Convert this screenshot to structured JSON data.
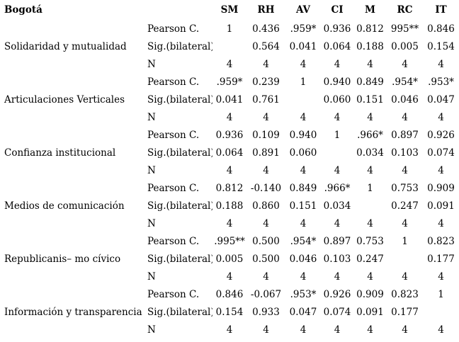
{
  "table": {
    "corner_label": "Bogotá",
    "columns": [
      "SM",
      "RH",
      "AV",
      "CI",
      "M",
      "RC",
      "IT"
    ],
    "row_labels": {
      "pearson": "Pearson C.",
      "sig": "Sig.(bilateral)",
      "n": "N"
    },
    "blocks": [
      {
        "variable": "Solidaridad y mutualidad",
        "pearson": [
          "1",
          "0.436",
          ".959*",
          "0.936",
          "0.812",
          "995**",
          "0.846"
        ],
        "sig": [
          "",
          "0.564",
          "0.041",
          "0.064",
          "0.188",
          "0.005",
          "0.154"
        ],
        "n": [
          "4",
          "4",
          "4",
          "4",
          "4",
          "4",
          "4"
        ]
      },
      {
        "variable": "Articulaciones Verticales",
        "pearson": [
          ".959*",
          "0.239",
          "1",
          "0.940",
          "0.849",
          ".954*",
          ".953*"
        ],
        "sig": [
          "0.041",
          "0.761",
          "",
          "0.060",
          "0.151",
          "0.046",
          "0.047"
        ],
        "n": [
          "4",
          "4",
          "4",
          "4",
          "4",
          "4",
          "4"
        ]
      },
      {
        "variable": "Confianza institucional",
        "pearson": [
          "0.936",
          "0.109",
          "0.940",
          "1",
          ".966*",
          "0.897",
          "0.926"
        ],
        "sig": [
          "0.064",
          "0.891",
          "0.060",
          "",
          "0.034",
          "0.103",
          "0.074"
        ],
        "n": [
          "4",
          "4",
          "4",
          "4",
          "4",
          "4",
          "4"
        ]
      },
      {
        "variable": "Medios de comunicación",
        "pearson": [
          "0.812",
          "-0.140",
          "0.849",
          ".966*",
          "1",
          "0.753",
          "0.909"
        ],
        "sig": [
          "0.188",
          "0.860",
          "0.151",
          "0.034",
          "",
          "0.247",
          "0.091"
        ],
        "n": [
          "4",
          "4",
          "4",
          "4",
          "4",
          "4",
          "4"
        ]
      },
      {
        "variable": "Republicanis– mo cívico",
        "pearson": [
          ".995**",
          "0.500",
          ".954*",
          "0.897",
          "0.753",
          "1",
          "0.823"
        ],
        "sig": [
          "0.005",
          "0.500",
          "0.046",
          "0.103",
          "0.247",
          "",
          "0.177"
        ],
        "n": [
          "4",
          "4",
          "4",
          "4",
          "4",
          "4",
          "4"
        ]
      },
      {
        "variable": "Información y transparencia",
        "pearson": [
          "0.846",
          "-0.067",
          ".953*",
          "0.926",
          "0.909",
          "0.823",
          "1"
        ],
        "sig": [
          "0.154",
          "0.933",
          "0.047",
          "0.074",
          "0.091",
          "0.177",
          ""
        ],
        "n": [
          "4",
          "4",
          "4",
          "4",
          "4",
          "4",
          "4"
        ]
      }
    ]
  }
}
